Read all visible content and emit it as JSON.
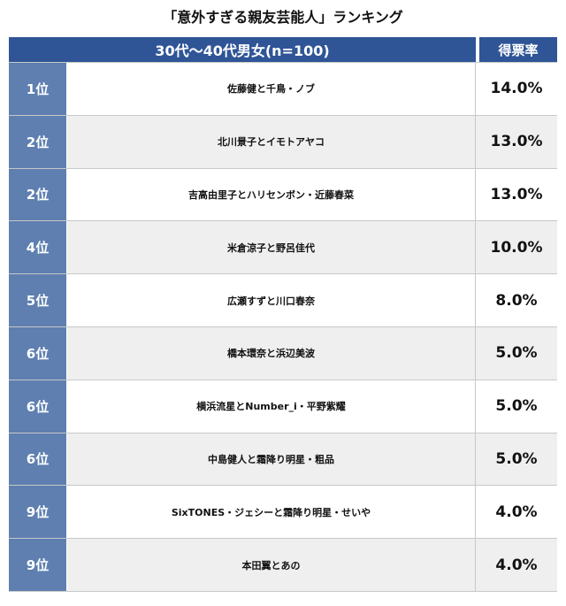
{
  "title": "「意外すぎる親友芸能人」ランキング",
  "chart_data": {
    "type": "table",
    "header_group": "30代〜40代男女(n=100)",
    "header_rate": "得票率",
    "rows": [
      {
        "rank": "1位",
        "name": "佐藤健と千鳥・ノブ",
        "rate": "14.0%",
        "value": 14.0
      },
      {
        "rank": "2位",
        "name": "北川景子とイモトアヤコ",
        "rate": "13.0%",
        "value": 13.0
      },
      {
        "rank": "2位",
        "name": "吉高由里子とハリセンボン・近藤春菜",
        "rate": "13.0%",
        "value": 13.0
      },
      {
        "rank": "4位",
        "name": "米倉涼子と野呂佳代",
        "rate": "10.0%",
        "value": 10.0
      },
      {
        "rank": "5位",
        "name": "広瀬すずと川口春奈",
        "rate": "8.0%",
        "value": 8.0
      },
      {
        "rank": "6位",
        "name": "橋本環奈と浜辺美波",
        "rate": "5.0%",
        "value": 5.0
      },
      {
        "rank": "6位",
        "name": "横浜流星とNumber_i・平野紫耀",
        "rate": "5.0%",
        "value": 5.0
      },
      {
        "rank": "6位",
        "name": "中島健人と霜降り明星・粗品",
        "rate": "5.0%",
        "value": 5.0
      },
      {
        "rank": "9位",
        "name": "SixTONES・ジェシーと霜降り明星・せいや",
        "rate": "4.0%",
        "value": 4.0
      },
      {
        "rank": "9位",
        "name": "本田翼とあの",
        "rate": "4.0%",
        "value": 4.0
      }
    ]
  },
  "colors": {
    "header_bg": "#2f5597",
    "rank_bg": "#5e7fb0",
    "row_alt_bg": "#efefef"
  }
}
